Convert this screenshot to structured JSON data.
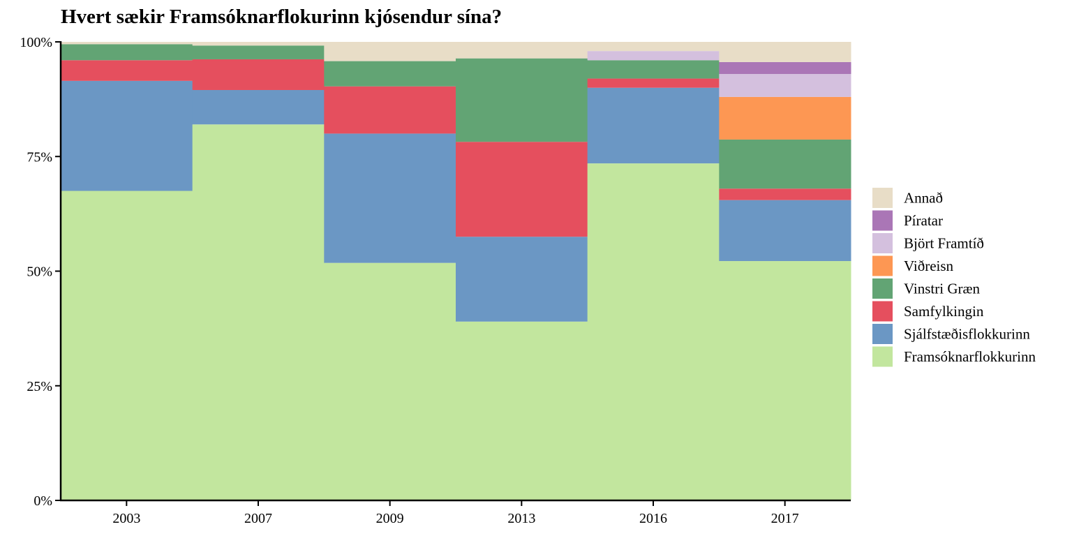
{
  "chart_data": {
    "type": "bar",
    "stacked": true,
    "title": "Hvert sækir Framsóknarflokurinn kjósendur sína?",
    "xlabel": "",
    "ylabel": "",
    "ylim": [
      0,
      100
    ],
    "y_ticks": [
      "0%",
      "25%",
      "50%",
      "75%",
      "100%"
    ],
    "y_tick_values": [
      0,
      25,
      50,
      75,
      100
    ],
    "grid": false,
    "legend_position": "right",
    "categories": [
      "2003",
      "2007",
      "2009",
      "2013",
      "2016",
      "2017"
    ],
    "series": [
      {
        "name": "Framsóknarflokkurinn",
        "color": "#c2e69e",
        "values": [
          67.5,
          82.0,
          51.8,
          39.0,
          73.5,
          52.2
        ]
      },
      {
        "name": "Sjálfstæðisflokkurinn",
        "color": "#6b97c4",
        "values": [
          24.0,
          7.5,
          28.2,
          18.5,
          16.5,
          13.3
        ]
      },
      {
        "name": "Samfylkingin",
        "color": "#e54f5e",
        "values": [
          4.5,
          6.7,
          10.3,
          20.7,
          2.0,
          2.5
        ]
      },
      {
        "name": "Vinstri Græn",
        "color": "#62a474",
        "values": [
          3.5,
          3.0,
          5.5,
          18.2,
          4.0,
          10.7
        ]
      },
      {
        "name": "Viðreisn",
        "color": "#fd9753",
        "values": [
          0,
          0,
          0,
          0,
          0,
          9.3
        ]
      },
      {
        "name": "Björt Framtíð",
        "color": "#d4c0de",
        "values": [
          0,
          0,
          0,
          0,
          2.0,
          5.0
        ]
      },
      {
        "name": "Píratar",
        "color": "#aa76b6",
        "values": [
          0,
          0,
          0,
          0,
          0,
          2.6
        ]
      },
      {
        "name": "Annað",
        "color": "#e8ddc7",
        "values": [
          0.5,
          0.8,
          4.2,
          3.6,
          2.0,
          4.4
        ]
      }
    ],
    "legend_order": [
      "Annað",
      "Píratar",
      "Björt Framtíð",
      "Viðreisn",
      "Vinstri Græn",
      "Samfylkingin",
      "Sjálfstæðisflokkurinn",
      "Framsóknarflokkurinn"
    ]
  }
}
